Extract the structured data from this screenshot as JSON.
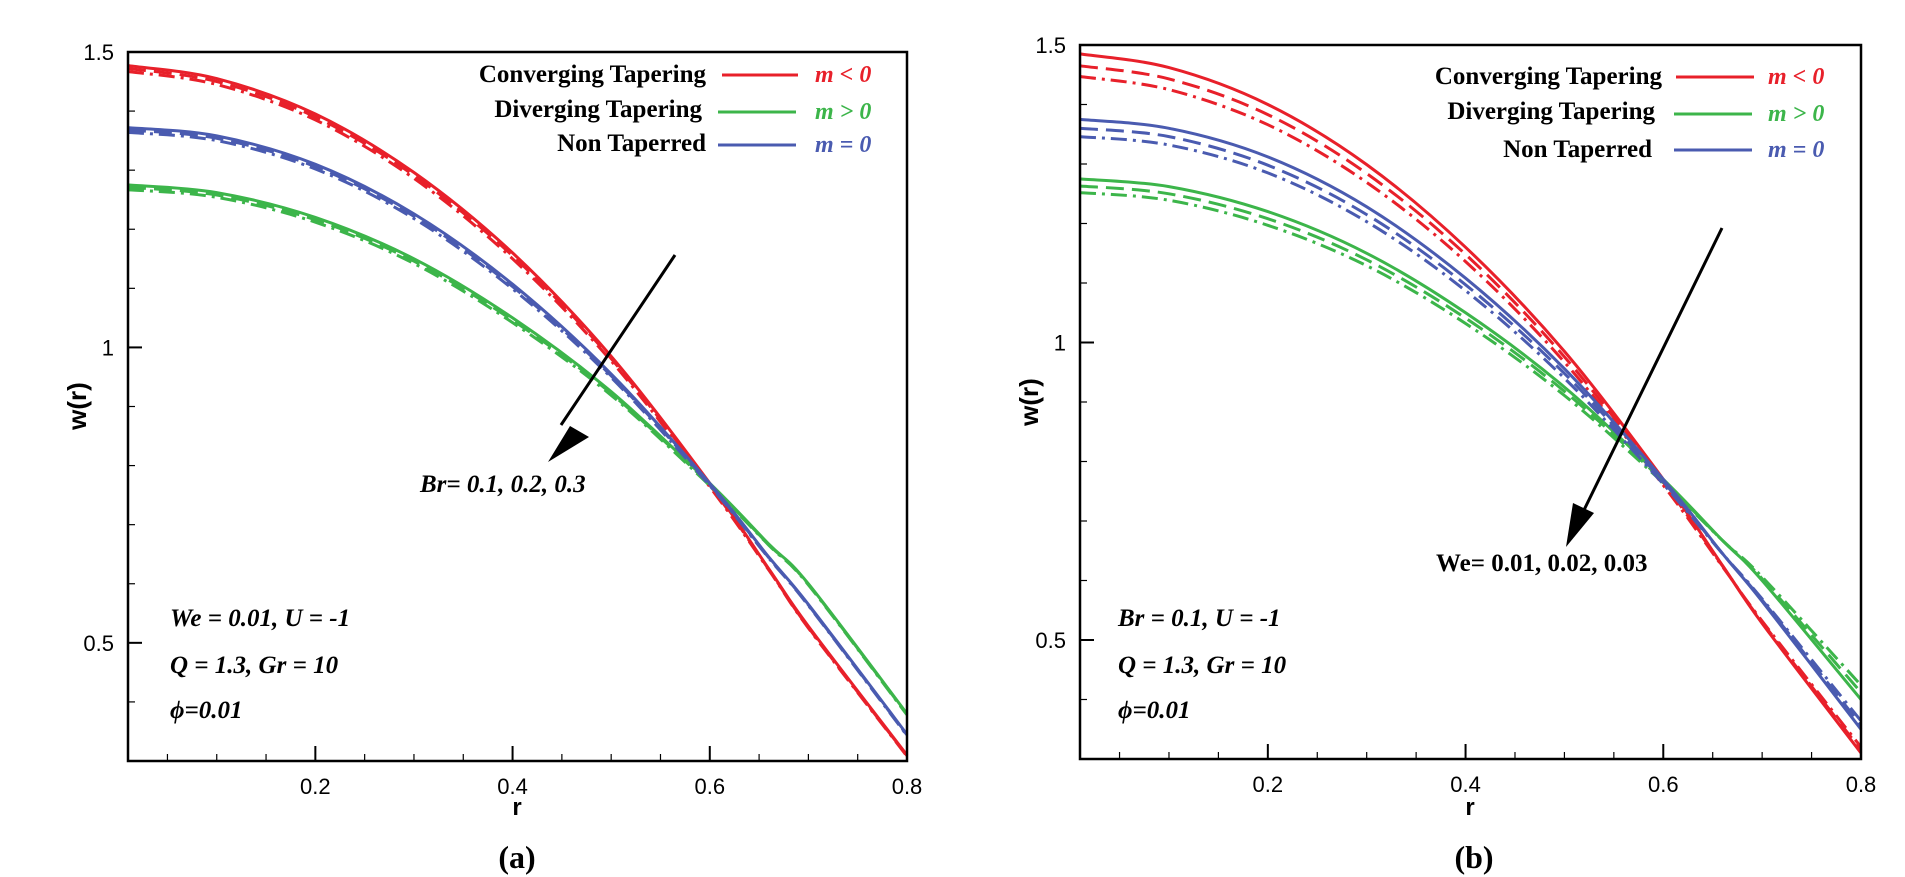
{
  "chart_data": [
    {
      "type": "line",
      "panel_label": "(a)",
      "xlabel": "r",
      "ylabel": "w(r)",
      "xlim": [
        0.01,
        0.8
      ],
      "ylim": [
        0.3,
        1.5
      ],
      "xticks": [
        0.2,
        0.4,
        0.6,
        0.8
      ],
      "yticks": [
        0.5,
        1,
        1.5
      ],
      "xtick_labels": [
        "0.2",
        "0.4",
        "0.6",
        "0.8"
      ],
      "ytick_labels": [
        "0.5",
        "1",
        "1.5"
      ],
      "legend": [
        {
          "label": "Converging Tapering",
          "condition": "m < 0",
          "color": "#e8202a"
        },
        {
          "label": "Diverging Tapering",
          "condition": "m > 0",
          "color": "#3cb54a"
        },
        {
          "label": "Non Taperred",
          "condition": "m = 0",
          "color": "#4a5bb0"
        }
      ],
      "annotation": "Br= 0.1, 0.2, 0.3",
      "params": [
        "We = 0.01,  U = -1",
        "Q = 1.3, Gr = 10",
        "ϕ=0.01"
      ],
      "series": [
        {
          "name": "Converging Tapering, Br = 0.1",
          "group": "m < 0",
          "color": "#e8202a",
          "dash": "solid",
          "x": [
            0.01,
            0.1,
            0.2,
            0.3,
            0.4,
            0.5,
            0.6,
            0.66,
            0.7,
            0.8
          ],
          "y": [
            1.477,
            1.455,
            1.395,
            1.296,
            1.16,
            0.985,
            0.77,
            0.625,
            0.528,
            0.31
          ]
        },
        {
          "name": "Converging Tapering, Br = 0.2",
          "group": "m < 0",
          "color": "#e8202a",
          "dash": "dashed",
          "x": [
            0.01,
            0.1,
            0.2,
            0.3,
            0.4,
            0.5,
            0.6,
            0.66,
            0.7,
            0.8
          ],
          "y": [
            1.472,
            1.45,
            1.39,
            1.291,
            1.155,
            0.981,
            0.767,
            0.624,
            0.526,
            0.309
          ]
        },
        {
          "name": "Converging Tapering, Br = 0.3",
          "group": "m < 0",
          "color": "#e8202a",
          "dash": "dashdot",
          "x": [
            0.01,
            0.1,
            0.2,
            0.3,
            0.4,
            0.5,
            0.6,
            0.66,
            0.7,
            0.8
          ],
          "y": [
            1.467,
            1.445,
            1.385,
            1.286,
            1.15,
            0.977,
            0.764,
            0.623,
            0.525,
            0.308
          ]
        },
        {
          "name": "Diverging Tapering, Br = 0.1",
          "group": "m > 0",
          "color": "#3cb54a",
          "dash": "solid",
          "x": [
            0.01,
            0.1,
            0.2,
            0.3,
            0.4,
            0.5,
            0.6,
            0.66,
            0.7,
            0.8
          ],
          "y": [
            1.275,
            1.262,
            1.22,
            1.15,
            1.05,
            0.925,
            0.77,
            0.667,
            0.6,
            0.38
          ]
        },
        {
          "name": "Diverging Tapering, Br = 0.2",
          "group": "m > 0",
          "color": "#3cb54a",
          "dash": "dashed",
          "x": [
            0.01,
            0.1,
            0.2,
            0.3,
            0.4,
            0.5,
            0.6,
            0.66,
            0.7,
            0.8
          ],
          "y": [
            1.271,
            1.258,
            1.216,
            1.146,
            1.046,
            0.922,
            0.768,
            0.666,
            0.599,
            0.379
          ]
        },
        {
          "name": "Diverging Tapering, Br = 0.3",
          "group": "m > 0",
          "color": "#3cb54a",
          "dash": "dashdot",
          "x": [
            0.01,
            0.1,
            0.2,
            0.3,
            0.4,
            0.5,
            0.6,
            0.66,
            0.7,
            0.8
          ],
          "y": [
            1.267,
            1.254,
            1.212,
            1.142,
            1.042,
            0.919,
            0.766,
            0.665,
            0.598,
            0.378
          ]
        },
        {
          "name": "Non Taperred, Br = 0.1",
          "group": "m = 0",
          "color": "#4a5bb0",
          "dash": "solid",
          "x": [
            0.01,
            0.1,
            0.2,
            0.3,
            0.4,
            0.5,
            0.6,
            0.66,
            0.7,
            0.8
          ],
          "y": [
            1.372,
            1.358,
            1.31,
            1.226,
            1.107,
            0.955,
            0.77,
            0.645,
            0.565,
            0.345
          ]
        },
        {
          "name": "Non Taperred, Br = 0.2",
          "group": "m = 0",
          "color": "#4a5bb0",
          "dash": "dashed",
          "x": [
            0.01,
            0.1,
            0.2,
            0.3,
            0.4,
            0.5,
            0.6,
            0.66,
            0.7,
            0.8
          ],
          "y": [
            1.368,
            1.354,
            1.306,
            1.222,
            1.103,
            0.952,
            0.768,
            0.644,
            0.564,
            0.344
          ]
        },
        {
          "name": "Non Taperred, Br = 0.3",
          "group": "m = 0",
          "color": "#4a5bb0",
          "dash": "dashdot",
          "x": [
            0.01,
            0.1,
            0.2,
            0.3,
            0.4,
            0.5,
            0.6,
            0.66,
            0.7,
            0.8
          ],
          "y": [
            1.364,
            1.35,
            1.302,
            1.218,
            1.099,
            0.949,
            0.766,
            0.643,
            0.563,
            0.343
          ]
        }
      ]
    },
    {
      "type": "line",
      "panel_label": "(b)",
      "xlabel": "r",
      "ylabel": "w(r)",
      "xlim": [
        0.01,
        0.8
      ],
      "ylim": [
        0.3,
        1.5
      ],
      "xticks": [
        0.2,
        0.4,
        0.6,
        0.8
      ],
      "yticks": [
        0.5,
        1,
        1.5
      ],
      "xtick_labels": [
        "0.2",
        "0.4",
        "0.6",
        "0.8"
      ],
      "ytick_labels": [
        "0.5",
        "1",
        "1.5"
      ],
      "legend": [
        {
          "label": "Converging Tapering",
          "condition": "m < 0",
          "color": "#e8202a"
        },
        {
          "label": "Diverging Tapering",
          "condition": "m > 0",
          "color": "#3cb54a"
        },
        {
          "label": "Non Taperred",
          "condition": "m = 0",
          "color": "#4a5bb0"
        }
      ],
      "annotation": "We= 0.01, 0.02, 0.03",
      "params": [
        "Br = 0.1,  U = -1",
        "Q = 1.3, Gr = 10",
        "ϕ=0.01"
      ],
      "series": [
        {
          "name": "Converging Tapering, We = 0.01",
          "group": "m < 0",
          "color": "#e8202a",
          "dash": "solid",
          "x": [
            0.01,
            0.1,
            0.2,
            0.3,
            0.4,
            0.5,
            0.6,
            0.66,
            0.7,
            0.8
          ],
          "y": [
            1.485,
            1.462,
            1.4,
            1.299,
            1.16,
            0.985,
            0.77,
            0.625,
            0.528,
            0.31
          ]
        },
        {
          "name": "Converging Tapering, We = 0.02",
          "group": "m < 0",
          "color": "#e8202a",
          "dash": "dashed",
          "x": [
            0.01,
            0.1,
            0.2,
            0.3,
            0.4,
            0.5,
            0.6,
            0.66,
            0.7,
            0.8
          ],
          "y": [
            1.465,
            1.443,
            1.383,
            1.284,
            1.148,
            0.976,
            0.765,
            0.624,
            0.53,
            0.315
          ]
        },
        {
          "name": "Converging Tapering, We = 0.03",
          "group": "m < 0",
          "color": "#e8202a",
          "dash": "dashdot",
          "x": [
            0.01,
            0.1,
            0.2,
            0.3,
            0.4,
            0.5,
            0.6,
            0.66,
            0.7,
            0.8
          ],
          "y": [
            1.447,
            1.425,
            1.366,
            1.269,
            1.136,
            0.967,
            0.76,
            0.623,
            0.532,
            0.32
          ]
        },
        {
          "name": "Diverging Tapering, We = 0.01",
          "group": "m > 0",
          "color": "#3cb54a",
          "dash": "solid",
          "x": [
            0.01,
            0.1,
            0.2,
            0.3,
            0.4,
            0.5,
            0.6,
            0.66,
            0.7,
            0.8
          ],
          "y": [
            1.275,
            1.262,
            1.22,
            1.15,
            1.05,
            0.925,
            0.77,
            0.667,
            0.6,
            0.4
          ]
        },
        {
          "name": "Diverging Tapering, We = 0.02",
          "group": "m > 0",
          "color": "#3cb54a",
          "dash": "dashed",
          "x": [
            0.01,
            0.1,
            0.2,
            0.3,
            0.4,
            0.5,
            0.6,
            0.66,
            0.7,
            0.8
          ],
          "y": [
            1.263,
            1.25,
            1.208,
            1.139,
            1.041,
            0.918,
            0.767,
            0.667,
            0.603,
            0.412
          ]
        },
        {
          "name": "Diverging Tapering, We = 0.03",
          "group": "m > 0",
          "color": "#3cb54a",
          "dash": "dashdot",
          "x": [
            0.01,
            0.1,
            0.2,
            0.3,
            0.4,
            0.5,
            0.6,
            0.66,
            0.7,
            0.8
          ],
          "y": [
            1.252,
            1.239,
            1.197,
            1.129,
            1.032,
            0.911,
            0.764,
            0.667,
            0.606,
            0.424
          ]
        },
        {
          "name": "Non Taperred, We = 0.01",
          "group": "m = 0",
          "color": "#4a5bb0",
          "dash": "solid",
          "x": [
            0.01,
            0.1,
            0.2,
            0.3,
            0.4,
            0.5,
            0.6,
            0.66,
            0.7,
            0.8
          ],
          "y": [
            1.375,
            1.36,
            1.312,
            1.228,
            1.108,
            0.956,
            0.77,
            0.645,
            0.565,
            0.35
          ]
        },
        {
          "name": "Non Taperred, We = 0.02",
          "group": "m = 0",
          "color": "#4a5bb0",
          "dash": "dashed",
          "x": [
            0.01,
            0.1,
            0.2,
            0.3,
            0.4,
            0.5,
            0.6,
            0.66,
            0.7,
            0.8
          ],
          "y": [
            1.36,
            1.346,
            1.298,
            1.215,
            1.097,
            0.948,
            0.766,
            0.645,
            0.567,
            0.357
          ]
        },
        {
          "name": "Non Taperred, We = 0.03",
          "group": "m = 0",
          "color": "#4a5bb0",
          "dash": "dashdot",
          "x": [
            0.01,
            0.1,
            0.2,
            0.3,
            0.4,
            0.5,
            0.6,
            0.66,
            0.7,
            0.8
          ],
          "y": [
            1.346,
            1.332,
            1.285,
            1.203,
            1.087,
            0.94,
            0.762,
            0.645,
            0.569,
            0.364
          ]
        }
      ]
    }
  ]
}
